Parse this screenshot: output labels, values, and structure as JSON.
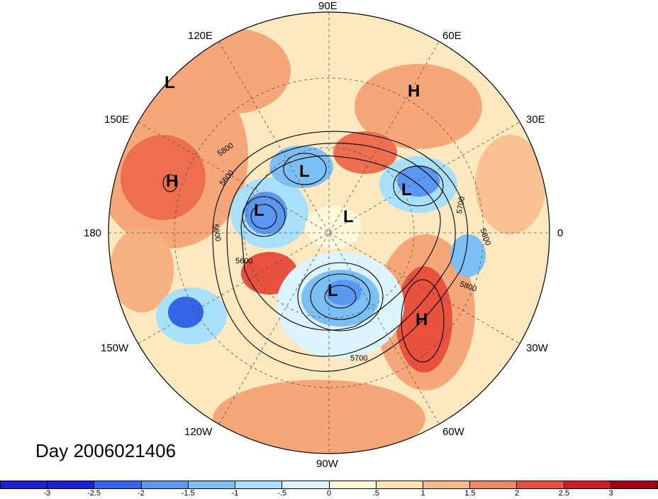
{
  "map": {
    "longitude_labels": [
      "90E",
      "60E",
      "30E",
      "0",
      "30W",
      "60W",
      "90W",
      "120W",
      "150W",
      "180",
      "150E",
      "120E"
    ],
    "pressure_systems": [
      {
        "type": "L",
        "region": "northeast Pacific (far)"
      },
      {
        "type": "H",
        "region": "Scandinavia / northern Russia"
      },
      {
        "type": "H",
        "region": "northwest Pacific"
      },
      {
        "type": "L",
        "region": "east Siberia"
      },
      {
        "type": "L",
        "region": "Kara Sea"
      },
      {
        "type": "L",
        "region": "Chukchi / Alaska"
      },
      {
        "type": "L",
        "region": "Arctic"
      },
      {
        "type": "L",
        "region": "Hudson Bay"
      },
      {
        "type": "H",
        "region": "central North Atlantic"
      }
    ],
    "contour_labels": [
      "5800",
      "5600",
      "5600",
      "5600",
      "5700",
      "5800",
      "5800",
      "5700"
    ],
    "caption": "Day 2006021406"
  },
  "colorbar": {
    "tick_labels": [
      "-3",
      "-2.5",
      "-2",
      "-1.5",
      "-1",
      "-.5",
      "0",
      ".5",
      "1",
      "1.5",
      "2",
      "2.5",
      "3"
    ],
    "colors": [
      "#1f1fd1",
      "#3465e8",
      "#5a97f0",
      "#7cbff5",
      "#a8e0fb",
      "#dcf4fd",
      "#fff9dc",
      "#fde4b0",
      "#f9b888",
      "#f08a5e",
      "#e8513e",
      "#c8202a",
      "#a0001a"
    ]
  }
}
